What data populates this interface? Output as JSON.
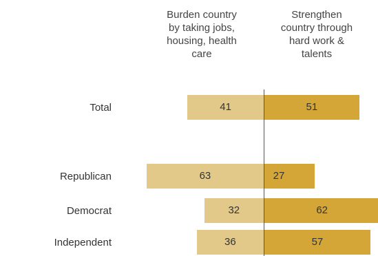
{
  "chart_data": {
    "type": "bar",
    "orientation": "diverging-horizontal",
    "column_headers": {
      "left": [
        "Burden country",
        "by taking jobs,",
        "housing, health",
        "care"
      ],
      "right": [
        "Strengthen",
        "country through",
        "hard work &",
        "talents"
      ]
    },
    "categories": [
      "Total",
      "Republican",
      "Democrat",
      "Independent"
    ],
    "series": [
      {
        "values": [
          41,
          63,
          32,
          36
        ],
        "color": "#e2c98a"
      },
      {
        "values": [
          51,
          27,
          62,
          57
        ],
        "color": "#d4a638"
      }
    ]
  }
}
